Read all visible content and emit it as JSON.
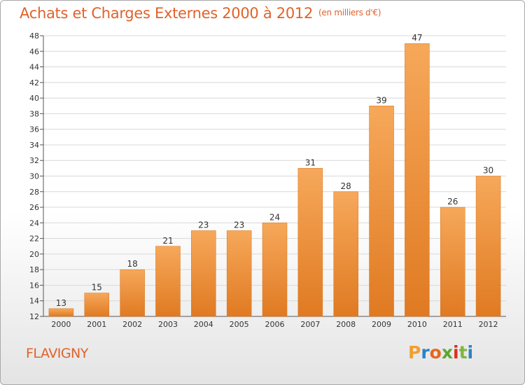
{
  "header": {
    "title": "Achats et Charges Externes 2000 à 2012",
    "unit": "(en milliers d'€)"
  },
  "footer": {
    "city": "FLAVIGNY",
    "logo": "Proxiti"
  },
  "colors": {
    "title": "#e0622a",
    "bar_top": "#f6a85a",
    "bar_bottom": "#e07a22",
    "logo_letters": [
      "#f0a030",
      "#2a82c8",
      "#e86520",
      "#5aa830",
      "#d83020",
      "#7db640",
      "#2a82c8"
    ]
  },
  "chart_data": {
    "type": "bar",
    "title": "Achats et Charges Externes 2000 à 2012",
    "subtitle": "(en milliers d'€)",
    "categories": [
      "2000",
      "2001",
      "2002",
      "2003",
      "2004",
      "2005",
      "2006",
      "2007",
      "2008",
      "2009",
      "2010",
      "2011",
      "2012"
    ],
    "values": [
      13,
      15,
      18,
      21,
      23,
      23,
      24,
      31,
      28,
      39,
      47,
      26,
      30
    ],
    "ylim": [
      12,
      48
    ],
    "yticks": [
      12,
      14,
      16,
      18,
      20,
      22,
      24,
      26,
      28,
      30,
      32,
      34,
      36,
      38,
      40,
      42,
      44,
      46,
      48
    ],
    "grid": true,
    "data_labels": true
  }
}
